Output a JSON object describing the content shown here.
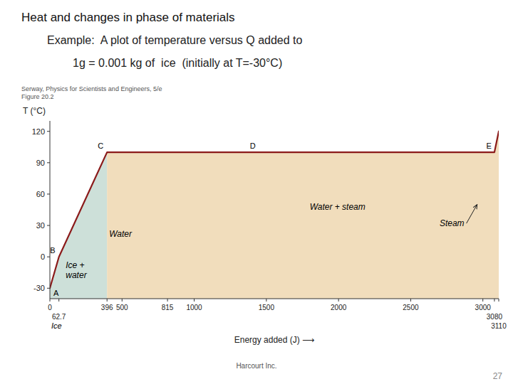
{
  "chart_data": {
    "type": "line",
    "title": "Heat and changes in phase of materials",
    "subtitle": [
      "Example:  A plot of temperature versus Q added to",
      "1g = 0.001 kg of  ice  (initially at T=-30°C)"
    ],
    "x_label": "Energy added (J) ⟶",
    "y_label": "T (°C)",
    "x": [
      0,
      62.7,
      396,
      815,
      3080,
      3110
    ],
    "series": [
      {
        "type": "area",
        "color": "#C8DDD5",
        "values": [
          -30,
          0,
          100,
          null,
          null,
          null
        ]
      },
      {
        "type": "area",
        "color": "#F0D9B5",
        "values": [
          null,
          null,
          100,
          100,
          100,
          120
        ]
      },
      {
        "type": "line",
        "color": "#8B1A1A",
        "values": [
          -30,
          0,
          100,
          100,
          100,
          120
        ]
      }
    ],
    "xlim": [
      0,
      3110
    ],
    "ylim": [
      -40,
      130
    ],
    "xticks": [
      0,
      62.7,
      396,
      500,
      815,
      1000,
      1500,
      2000,
      2500,
      3000,
      3080,
      3110
    ],
    "yticks": [
      -30,
      0,
      30,
      60,
      90,
      120
    ],
    "grid": false,
    "point_labels": [
      {
        "text": "A",
        "x": 0,
        "y": -30
      },
      {
        "text": "B",
        "x": 62.7,
        "y": 0
      },
      {
        "text": "C",
        "x": 396,
        "y": 100
      },
      {
        "text": "D",
        "x": 1450,
        "y": 100
      },
      {
        "text": "E",
        "x": 3085,
        "y": 100
      }
    ],
    "annotations": [
      {
        "text": "Ice +\nwater",
        "x": 110,
        "y": -13
      },
      {
        "text": "Water",
        "x": 411,
        "y": 22
      },
      {
        "text": "Water + steam",
        "x": 1800,
        "y": 48
      },
      {
        "text": "Steam",
        "x": 2700,
        "y": 32,
        "arrow_x": 2960,
        "arrow_y": 50
      },
      {
        "text": "Ice",
        "x": 10
      }
    ],
    "source": "Serway, Physics for Scientists and Engineers, 5/e\nFigure 20.2",
    "footer": "Harcourt Inc.",
    "page_number": "27"
  }
}
